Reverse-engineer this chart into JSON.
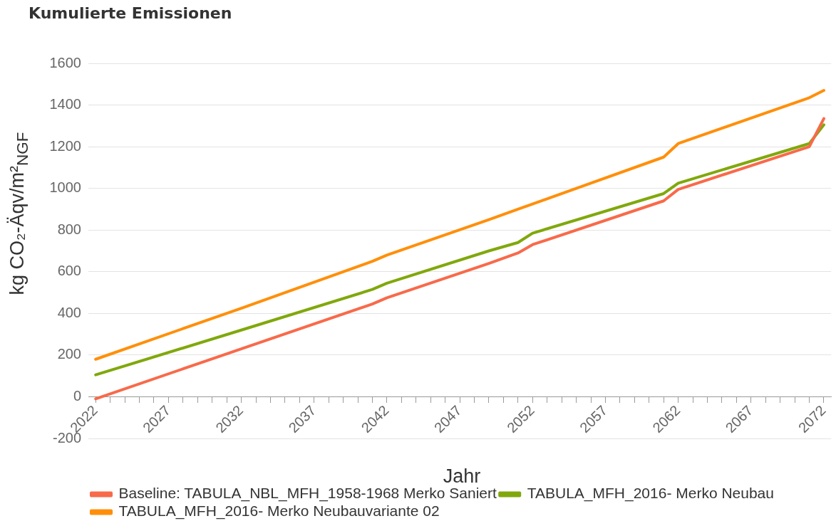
{
  "chart_data": {
    "type": "line",
    "title": "Kumulierte Emissionen",
    "xlabel": "Jahr",
    "ylabel": "kg CO₂-Äqv/m²$_{NGF}$",
    "x": [
      2022,
      2032,
      2041,
      2042,
      2049,
      2051,
      2052,
      2061,
      2062,
      2071,
      2072
    ],
    "series": [
      {
        "name": "Baseline: TABULA_NBL_MFH_1958-1968 Merko Saniert",
        "color": "#f86a4a",
        "values": [
          -10,
          230,
          445,
          475,
          640,
          690,
          730,
          940,
          995,
          1200,
          1335
        ]
      },
      {
        "name": "TABULA_MFH_2016- Merko Neubau",
        "color": "#80a80c",
        "values": [
          105,
          320,
          515,
          545,
          700,
          740,
          785,
          975,
          1025,
          1215,
          1305
        ]
      },
      {
        "name": "TABULA_MFH_2016- Merko Neubauvariante 02",
        "color": "#ff8f0a",
        "values": [
          180,
          425,
          650,
          680,
          850,
          900,
          925,
          1150,
          1215,
          1435,
          1470
        ]
      }
    ],
    "xlim": [
      2021.5,
      2072.5
    ],
    "xticks": [
      2022,
      {
        "value": 2023,
        "label": null
      },
      {
        "value": 2024,
        "label": null
      },
      {
        "value": 2025,
        "label": null
      },
      {
        "value": 2026,
        "label": null
      },
      2027,
      {
        "value": 2028,
        "label": null
      },
      {
        "value": 2029,
        "label": null
      },
      {
        "value": 2030,
        "label": null
      },
      {
        "value": 2031,
        "label": null
      },
      2032,
      {
        "value": 2033,
        "label": null
      },
      {
        "value": 2034,
        "label": null
      },
      {
        "value": 2035,
        "label": null
      },
      {
        "value": 2036,
        "label": null
      },
      2037,
      {
        "value": 2038,
        "label": null
      },
      {
        "value": 2039,
        "label": null
      },
      {
        "value": 2040,
        "label": null
      },
      {
        "value": 2041,
        "label": null
      },
      2042,
      {
        "value": 2043,
        "label": null
      },
      {
        "value": 2044,
        "label": null
      },
      {
        "value": 2045,
        "label": null
      },
      {
        "value": 2046,
        "label": null
      },
      2047,
      {
        "value": 2048,
        "label": null
      },
      {
        "value": 2049,
        "label": null
      },
      {
        "value": 2050,
        "label": null
      },
      {
        "value": 2051,
        "label": null
      },
      2052,
      {
        "value": 2053,
        "label": null
      },
      {
        "value": 2054,
        "label": null
      },
      {
        "value": 2055,
        "label": null
      },
      {
        "value": 2056,
        "label": null
      },
      2057,
      {
        "value": 2058,
        "label": null
      },
      {
        "value": 2059,
        "label": null
      },
      {
        "value": 2060,
        "label": null
      },
      {
        "value": 2061,
        "label": null
      },
      2062,
      {
        "value": 2063,
        "label": null
      },
      {
        "value": 2064,
        "label": null
      },
      {
        "value": 2065,
        "label": null
      },
      {
        "value": 2066,
        "label": null
      },
      2067,
      {
        "value": 2068,
        "label": null
      },
      {
        "value": 2069,
        "label": null
      },
      {
        "value": 2070,
        "label": null
      },
      {
        "value": 2071,
        "label": null
      },
      2072
    ],
    "ylim": [
      -200,
      1600
    ],
    "yticks": [
      -200,
      0,
      200,
      400,
      600,
      800,
      1000,
      1200,
      1400,
      1600
    ],
    "grid": "y",
    "legend": "bottom left",
    "line_style": "solid"
  }
}
